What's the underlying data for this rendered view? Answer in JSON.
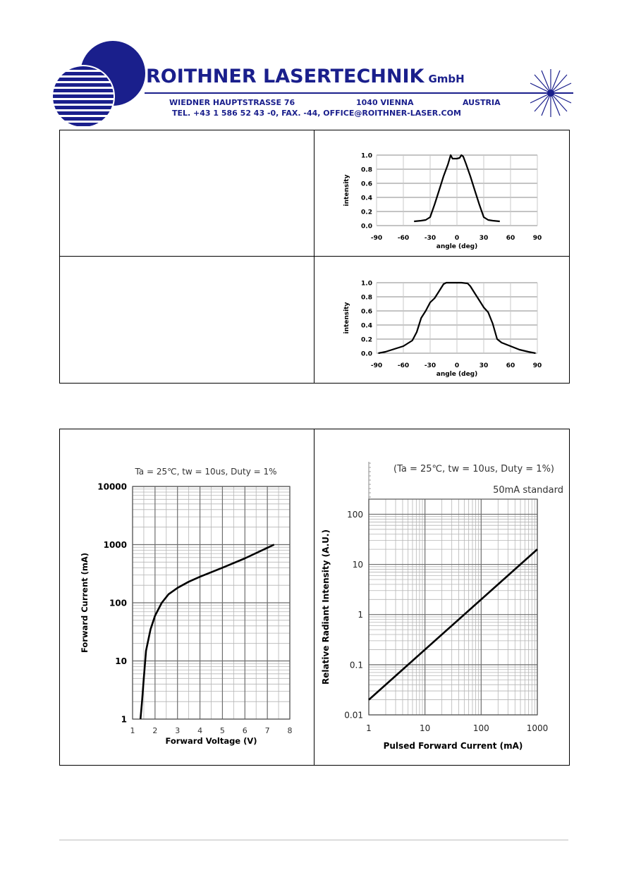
{
  "header": {
    "company": "ROITHNER LASERTECHNIK",
    "company_suffix": "GmbH",
    "street": "WIEDNER HAUPTSTRASSE 76",
    "city": "1040 VIENNA",
    "country": "AUSTRIA",
    "contact": "TEL. +43 1 586 52 43 -0, FAX. -44, OFFICE@ROITHNER-LASER.COM"
  },
  "colors": {
    "brand_blue": "#1a1f8c"
  },
  "chart_data": [
    {
      "type": "line",
      "xlabel": "angle (deg)",
      "ylabel": "intensity",
      "xlim": [
        -90,
        90
      ],
      "ylim": [
        0,
        1.0
      ],
      "x_ticks": [
        "-90",
        "-60",
        "-30",
        "0",
        "30",
        "60",
        "90"
      ],
      "y_ticks": [
        "0.0",
        "0.2",
        "0.4",
        "0.6",
        "0.8",
        "1.0"
      ],
      "grid": "horizontal",
      "series": [
        {
          "x": [
            -48,
            -40,
            -35,
            -30,
            -25,
            -20,
            -15,
            -10,
            -7,
            -5,
            0,
            3,
            5,
            7,
            10,
            15,
            20,
            25,
            30,
            35,
            40,
            48
          ],
          "y": [
            0.06,
            0.07,
            0.08,
            0.12,
            0.3,
            0.5,
            0.7,
            0.87,
            1.0,
            0.95,
            0.95,
            0.96,
            1.0,
            0.98,
            0.88,
            0.7,
            0.5,
            0.3,
            0.12,
            0.08,
            0.07,
            0.06
          ]
        }
      ]
    },
    {
      "type": "line",
      "xlabel": "angle (deg)",
      "ylabel": "intensity",
      "xlim": [
        -90,
        90
      ],
      "ylim": [
        0,
        1.0
      ],
      "x_ticks": [
        "-90",
        "-60",
        "-30",
        "0",
        "30",
        "60",
        "90"
      ],
      "y_ticks": [
        "0.0",
        "0.2",
        "0.4",
        "0.6",
        "0.8",
        "1.0"
      ],
      "grid": "horizontal",
      "series": [
        {
          "x": [
            -88,
            -80,
            -70,
            -60,
            -50,
            -45,
            -40,
            -35,
            -30,
            -25,
            -20,
            -15,
            -12,
            -5,
            0,
            5,
            12,
            15,
            20,
            25,
            30,
            35,
            40,
            45,
            50,
            60,
            70,
            80,
            88
          ],
          "y": [
            0.0,
            0.02,
            0.06,
            0.1,
            0.18,
            0.3,
            0.5,
            0.6,
            0.72,
            0.78,
            0.88,
            0.98,
            1.0,
            1.0,
            1.0,
            1.0,
            0.99,
            0.95,
            0.85,
            0.75,
            0.65,
            0.58,
            0.42,
            0.2,
            0.15,
            0.1,
            0.05,
            0.02,
            0.0
          ]
        }
      ]
    },
    {
      "type": "line",
      "title": "Ta = 25℃, tw = 10us, Duty = 1%",
      "xlabel": "Forward Voltage (V)",
      "ylabel": "Forward Current (mA)",
      "xlim": [
        1,
        8
      ],
      "ylim": [
        1,
        10000
      ],
      "yscale": "log",
      "x_ticks": [
        "1",
        "2",
        "3",
        "4",
        "5",
        "6",
        "7",
        "8"
      ],
      "y_ticks": [
        "1",
        "10",
        "100",
        "1000",
        "10000"
      ],
      "grid": "both",
      "series": [
        {
          "x": [
            1.35,
            1.42,
            1.5,
            1.6,
            1.8,
            2.0,
            2.3,
            2.6,
            3.0,
            3.5,
            4.0,
            5.0,
            6.0,
            7.3
          ],
          "y": [
            1,
            2,
            5,
            15,
            35,
            60,
            100,
            140,
            180,
            230,
            280,
            400,
            580,
            1000
          ]
        }
      ]
    },
    {
      "type": "line",
      "title": "(Ta = 25℃, tw = 10us, Duty = 1%)",
      "subtitle": "50mA standard",
      "xlabel": "Pulsed Forward Current (mA)",
      "ylabel": "Relative Radiant Intensity (A.U.)",
      "xlim": [
        1,
        1000
      ],
      "ylim": [
        0.01,
        200
      ],
      "xscale": "log",
      "yscale": "log",
      "x_ticks": [
        "1",
        "10",
        "100",
        "1000"
      ],
      "y_ticks": [
        "0.01",
        "0.1",
        "1",
        "10",
        "100"
      ],
      "grid": "both",
      "series": [
        {
          "x": [
            1,
            1000
          ],
          "y": [
            0.02,
            20
          ]
        }
      ]
    }
  ]
}
